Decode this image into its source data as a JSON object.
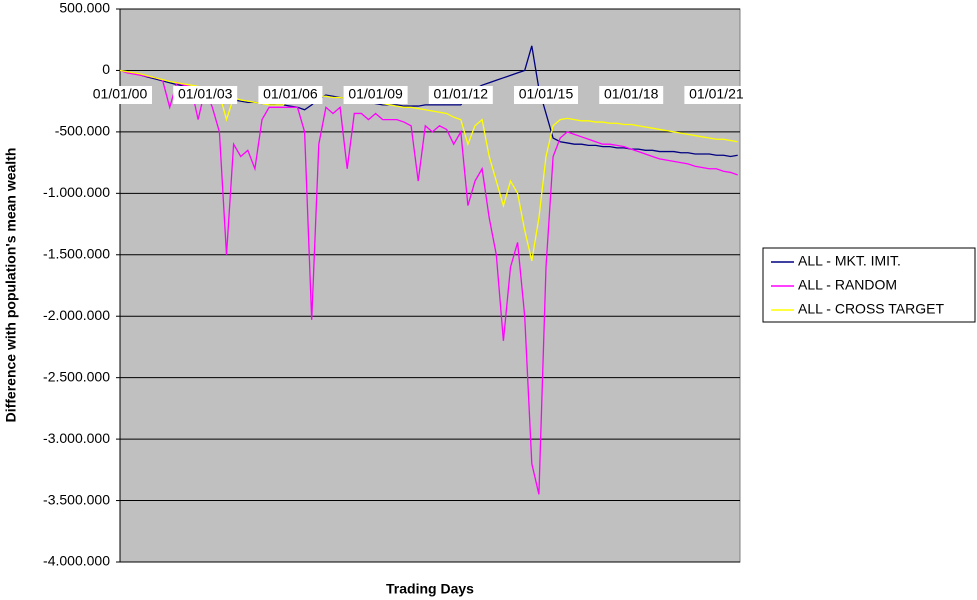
{
  "chart_data": {
    "type": "line",
    "y_label": "Difference with population's mean wealth",
    "x_label": "Trading Days",
    "categories": [
      "01/01/00",
      null,
      null,
      null,
      null,
      null,
      null,
      null,
      null,
      null,
      null,
      null,
      "01/01/03",
      null,
      null,
      null,
      null,
      null,
      null,
      null,
      null,
      null,
      null,
      null,
      "01/01/06",
      null,
      null,
      null,
      null,
      null,
      null,
      null,
      null,
      null,
      null,
      null,
      "01/01/09",
      null,
      null,
      null,
      null,
      null,
      null,
      null,
      null,
      null,
      null,
      null,
      "01/01/12",
      null,
      null,
      null,
      null,
      null,
      null,
      null,
      null,
      null,
      null,
      null,
      "01/01/15",
      null,
      null,
      null,
      null,
      null,
      null,
      null,
      null,
      null,
      null,
      null,
      "01/01/18",
      null,
      null,
      null,
      null,
      null,
      null,
      null,
      null,
      null,
      null,
      null,
      "01/01/21",
      null,
      null,
      null
    ],
    "series": [
      {
        "name": "ALL - MKT. IMIT.",
        "color": "#000080",
        "values": [
          0,
          -10000,
          -25000,
          -40000,
          -55000,
          -70000,
          -85000,
          -100000,
          -115000,
          -125000,
          -140000,
          -150000,
          -160000,
          -180000,
          -200000,
          -220000,
          -240000,
          -250000,
          -260000,
          -260000,
          -270000,
          -270000,
          -280000,
          -280000,
          -290000,
          -300000,
          -320000,
          -280000,
          -230000,
          -200000,
          -210000,
          -220000,
          -230000,
          -240000,
          -250000,
          -260000,
          -270000,
          -280000,
          -280000,
          -280000,
          -290000,
          -290000,
          -290000,
          -280000,
          -280000,
          -280000,
          -280000,
          -280000,
          -280000,
          -200000,
          -150000,
          -120000,
          -100000,
          -80000,
          -60000,
          -40000,
          -20000,
          0,
          200000,
          -150000,
          -350000,
          -550000,
          -580000,
          -590000,
          -600000,
          -600000,
          -610000,
          -610000,
          -620000,
          -620000,
          -630000,
          -630000,
          -640000,
          -640000,
          -650000,
          -650000,
          -660000,
          -660000,
          -660000,
          -670000,
          -670000,
          -680000,
          -680000,
          -680000,
          -690000,
          -690000,
          -700000,
          -690000
        ]
      },
      {
        "name": "ALL - RANDOM",
        "color": "#ff00ff",
        "values": [
          0,
          -20000,
          -30000,
          -40000,
          -50000,
          -60000,
          -80000,
          -300000,
          -100000,
          -120000,
          -130000,
          -400000,
          -150000,
          -300000,
          -500000,
          -1500000,
          -600000,
          -700000,
          -650000,
          -800000,
          -400000,
          -300000,
          -300000,
          -300000,
          -300000,
          -300000,
          -500000,
          -2030000,
          -600000,
          -300000,
          -350000,
          -300000,
          -800000,
          -350000,
          -350000,
          -400000,
          -350000,
          -400000,
          -400000,
          -400000,
          -420000,
          -450000,
          -900000,
          -450000,
          -500000,
          -450000,
          -480000,
          -600000,
          -500000,
          -1100000,
          -900000,
          -800000,
          -1200000,
          -1500000,
          -2200000,
          -1600000,
          -1400000,
          -2000000,
          -3200000,
          -3450000,
          -1600000,
          -700000,
          -550000,
          -500000,
          -520000,
          -540000,
          -560000,
          -580000,
          -600000,
          -600000,
          -610000,
          -620000,
          -640000,
          -660000,
          -680000,
          -700000,
          -720000,
          -730000,
          -740000,
          -750000,
          -760000,
          -780000,
          -790000,
          -800000,
          -800000,
          -820000,
          -830000,
          -850000
        ]
      },
      {
        "name": "ALL - CROSS TARGET",
        "color": "#ffff00",
        "values": [
          0,
          -10000,
          -20000,
          -30000,
          -45000,
          -60000,
          -75000,
          -90000,
          -100000,
          -110000,
          -120000,
          -130000,
          -150000,
          -170000,
          -190000,
          -400000,
          -220000,
          -240000,
          -250000,
          -260000,
          -270000,
          -280000,
          -280000,
          -280000,
          -220000,
          -210000,
          -200000,
          -200000,
          -210000,
          -210000,
          -220000,
          -220000,
          -230000,
          -240000,
          -250000,
          -250000,
          -260000,
          -270000,
          -280000,
          -290000,
          -300000,
          -300000,
          -310000,
          -320000,
          -330000,
          -340000,
          -350000,
          -380000,
          -400000,
          -600000,
          -450000,
          -400000,
          -700000,
          -900000,
          -1100000,
          -900000,
          -1000000,
          -1300000,
          -1550000,
          -1200000,
          -700000,
          -450000,
          -400000,
          -390000,
          -400000,
          -410000,
          -410000,
          -420000,
          -420000,
          -430000,
          -430000,
          -440000,
          -440000,
          -450000,
          -460000,
          -470000,
          -480000,
          -490000,
          -500000,
          -510000,
          -520000,
          -530000,
          -540000,
          -550000,
          -560000,
          -560000,
          -570000,
          -580000
        ]
      }
    ],
    "ylim": [
      -4000000,
      500000
    ],
    "yticks": [
      {
        "value": 500000,
        "label": "500.000"
      },
      0,
      {
        "value": -500000,
        "label": "-500.000"
      },
      {
        "value": -1000000,
        "label": "-1.000.000"
      },
      {
        "value": -1500000,
        "label": "-1.500.000"
      },
      {
        "value": -2000000,
        "label": "-2.000.000"
      },
      {
        "value": -2500000,
        "label": "-2.500.000"
      },
      {
        "value": -3000000,
        "label": "-3.000.000"
      },
      {
        "value": -3500000,
        "label": "-3.500.000"
      },
      {
        "value": -4000000,
        "label": "-4.000.000"
      }
    ],
    "grid": true,
    "background": "#c0c0c0"
  }
}
